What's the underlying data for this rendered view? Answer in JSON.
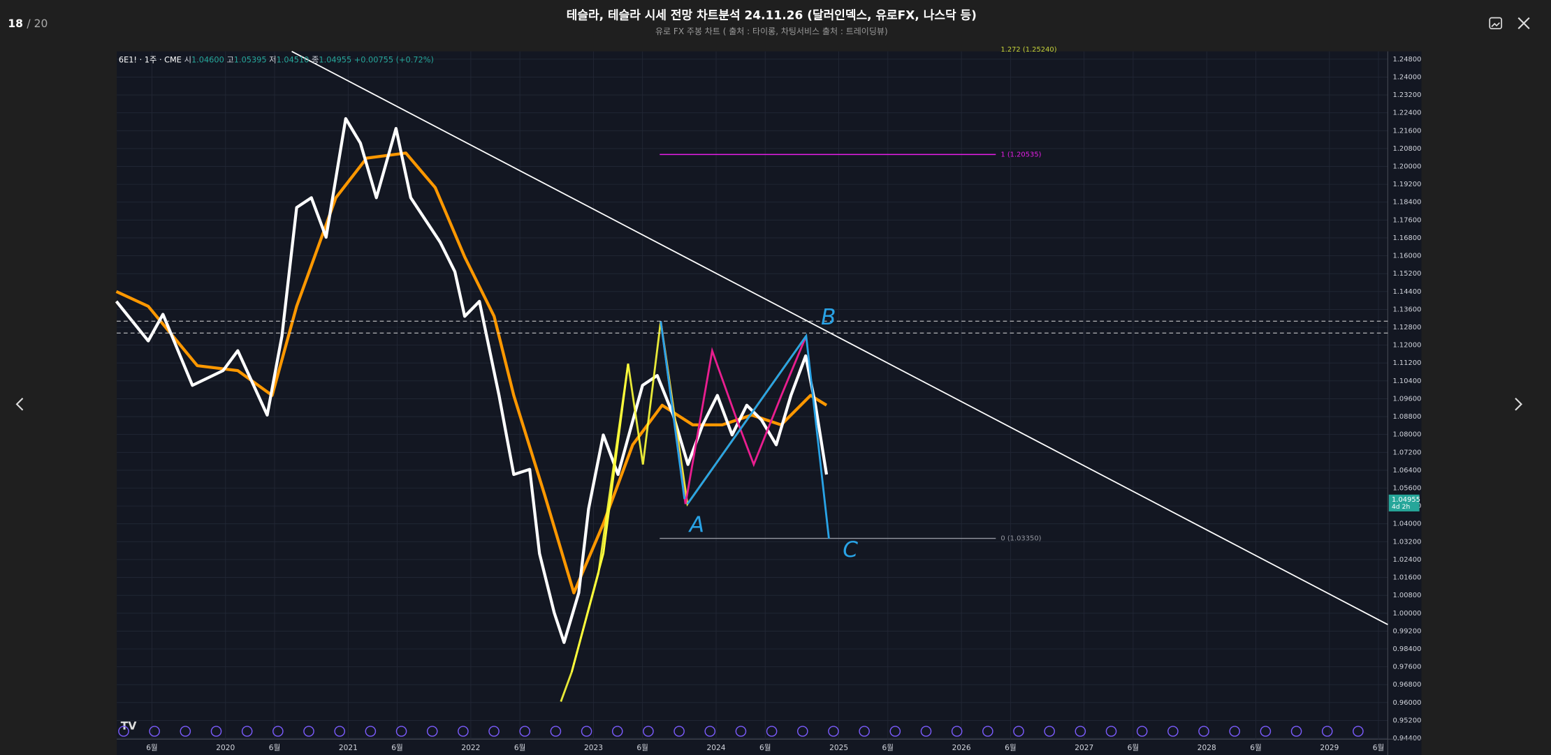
{
  "viewer": {
    "counter": "18",
    "counter_total": "/ 20",
    "title": "테슬라, 테슬라 시세 전망 차트분석 24.11.26 (달러인덱스, 유로FX, 나스닥 등)",
    "subtitle": "유로 FX 주봉 차트 ( 출처 : 타이롱, 차팅서비스 출처 : 트레이딩뷰)"
  },
  "chart_data": {
    "type": "line",
    "legend": {
      "symbol": "6E1! · 1주 · CME",
      "open_label": "시",
      "open": "1.04600",
      "high_label": "고",
      "high": "1.05395",
      "low_label": "저",
      "low": "1.04510",
      "close_label": "종",
      "close": "1.04955",
      "change": "+0.00755 (+0.72%)"
    },
    "last_price": {
      "value": 1.04955,
      "label": "1.04955",
      "countdown": "4d 2h"
    },
    "xlim": [
      2019.113,
      2029.476
    ],
    "ylim": [
      0.9436,
      1.2515
    ],
    "xticks": [
      {
        "value": 2019.4,
        "label": "6월"
      },
      {
        "value": 2020,
        "label": "2020"
      },
      {
        "value": 2020.4,
        "label": "6월"
      },
      {
        "value": 2021,
        "label": "2021"
      },
      {
        "value": 2021.4,
        "label": "6월"
      },
      {
        "value": 2022,
        "label": "2022"
      },
      {
        "value": 2022.4,
        "label": "6월"
      },
      {
        "value": 2023,
        "label": "2023"
      },
      {
        "value": 2023.4,
        "label": "6월"
      },
      {
        "value": 2024,
        "label": "2024"
      },
      {
        "value": 2024.4,
        "label": "6월"
      },
      {
        "value": 2025,
        "label": "2025"
      },
      {
        "value": 2025.4,
        "label": "6월"
      },
      {
        "value": 2026,
        "label": "2026"
      },
      {
        "value": 2026.4,
        "label": "6월"
      },
      {
        "value": 2027,
        "label": "2027"
      },
      {
        "value": 2027.4,
        "label": "6월"
      },
      {
        "value": 2028,
        "label": "2028"
      },
      {
        "value": 2028.4,
        "label": "6월"
      },
      {
        "value": 2029,
        "label": "2029"
      },
      {
        "value": 2029.4,
        "label": "6월"
      }
    ],
    "yticks": [
      {
        "value": 1.248,
        "label": "1.24800"
      },
      {
        "value": 1.24,
        "label": "1.24000"
      },
      {
        "value": 1.232,
        "label": "1.23200"
      },
      {
        "value": 1.224,
        "label": "1.22400"
      },
      {
        "value": 1.216,
        "label": "1.21600"
      },
      {
        "value": 1.208,
        "label": "1.20800"
      },
      {
        "value": 1.2,
        "label": "1.20000"
      },
      {
        "value": 1.192,
        "label": "1.19200"
      },
      {
        "value": 1.184,
        "label": "1.18400"
      },
      {
        "value": 1.176,
        "label": "1.17600"
      },
      {
        "value": 1.168,
        "label": "1.16800"
      },
      {
        "value": 1.16,
        "label": "1.16000"
      },
      {
        "value": 1.152,
        "label": "1.15200"
      },
      {
        "value": 1.144,
        "label": "1.14400"
      },
      {
        "value": 1.136,
        "label": "1.13600"
      },
      {
        "value": 1.128,
        "label": "1.12800"
      },
      {
        "value": 1.12,
        "label": "1.12000"
      },
      {
        "value": 1.112,
        "label": "1.11200"
      },
      {
        "value": 1.104,
        "label": "1.10400"
      },
      {
        "value": 1.096,
        "label": "1.09600"
      },
      {
        "value": 1.088,
        "label": "1.08800"
      },
      {
        "value": 1.08,
        "label": "1.08000"
      },
      {
        "value": 1.072,
        "label": "1.07200"
      },
      {
        "value": 1.064,
        "label": "1.06400"
      },
      {
        "value": 1.056,
        "label": "1.05600"
      },
      {
        "value": 1.048,
        "label": "1.04800"
      },
      {
        "value": 1.04,
        "label": "1.04000"
      },
      {
        "value": 1.032,
        "label": "1.03200"
      },
      {
        "value": 1.024,
        "label": "1.02400"
      },
      {
        "value": 1.016,
        "label": "1.01600"
      },
      {
        "value": 1.008,
        "label": "1.00800"
      },
      {
        "value": 1,
        "label": "1.00000"
      },
      {
        "value": 0.992,
        "label": "0.99200"
      },
      {
        "value": 0.984,
        "label": "0.98400"
      },
      {
        "value": 0.976,
        "label": "0.97600"
      },
      {
        "value": 0.968,
        "label": "0.96800"
      },
      {
        "value": 0.96,
        "label": "0.96000"
      },
      {
        "value": 0.952,
        "label": "0.95200"
      },
      {
        "value": 0.944,
        "label": "0.94400"
      }
    ],
    "grid": true,
    "series": [
      {
        "color": "#ff9800",
        "width": 3,
        "x": [
          2019.11,
          2019.37,
          2019.77,
          2020.1,
          2020.38,
          2020.58,
          2020.9,
          2021.15,
          2021.47,
          2021.71,
          2021.95,
          2022.19,
          2022.35,
          2022.6,
          2022.84,
          2023.08,
          2023.32,
          2023.56,
          2023.81,
          2024.05,
          2024.29,
          2024.53,
          2024.77,
          2024.9
        ],
        "values": [
          1.144,
          1.1374,
          1.1108,
          1.1086,
          1.0975,
          1.1374,
          1.186,
          1.2037,
          1.206,
          1.1905,
          1.1595,
          1.1329,
          1.0975,
          1.0533,
          1.0091,
          1.04,
          1.0754,
          1.0931,
          1.0843,
          1.0843,
          1.0887,
          1.0843,
          1.0975,
          1.0931
        ]
      },
      {
        "color": "#ffffff",
        "width": 3,
        "x": [
          2019.11,
          2019.37,
          2019.49,
          2019.73,
          2019.98,
          2020.1,
          2020.34,
          2020.46,
          2020.58,
          2020.7,
          2020.82,
          2020.98,
          2021.1,
          2021.23,
          2021.39,
          2021.51,
          2021.75,
          2021.87,
          2021.95,
          2022.07,
          2022.23,
          2022.35,
          2022.48,
          2022.56,
          2022.68,
          2022.76,
          2022.88,
          2022.96,
          2023.08,
          2023.2,
          2023.4,
          2023.52,
          2023.65,
          2023.77,
          2023.89,
          2024.01,
          2024.13,
          2024.25,
          2024.37,
          2024.49,
          2024.61,
          2024.73,
          2024.81,
          2024.9
        ],
        "values": [
          1.1396,
          1.1219,
          1.1338,
          1.102,
          1.1086,
          1.1175,
          1.0887,
          1.1241,
          1.1816,
          1.186,
          1.1683,
          1.2214,
          1.2104,
          1.186,
          1.217,
          1.186,
          1.1661,
          1.1529,
          1.1329,
          1.1396,
          1.0975,
          1.0621,
          1.0644,
          1.0267,
          1.0002,
          0.9869,
          1.0091,
          1.0467,
          1.0798,
          1.0621,
          1.102,
          1.1064,
          1.0887,
          1.0666,
          1.0843,
          1.0975,
          1.0798,
          1.0931,
          1.0865,
          1.0754,
          1.0975,
          1.1152,
          1.0931,
          1.0621
        ]
      }
    ],
    "annotations": [
      {
        "label": "1 (1.20535)",
        "color": "#e91ee9",
        "x": [
          2023.54,
          2026.28
        ],
        "values": [
          1.20535,
          1.20535
        ]
      },
      {
        "label": "0 (1.03350)",
        "color": "#9598a1",
        "x": [
          2023.54,
          2026.28
        ],
        "values": [
          1.0335,
          1.0335
        ]
      },
      {
        "label": "1.272 (1.25240)",
        "color": "#c5d23a",
        "x": [
          2026.28
        ],
        "values": [
          1.2524
        ]
      }
    ],
    "trendline": {
      "color": "#ffffff",
      "x": [
        2020.54,
        2029.476
      ],
      "values": [
        1.2515,
        0.9949
      ]
    },
    "wave_labels": [
      "A",
      "B",
      "C"
    ]
  }
}
